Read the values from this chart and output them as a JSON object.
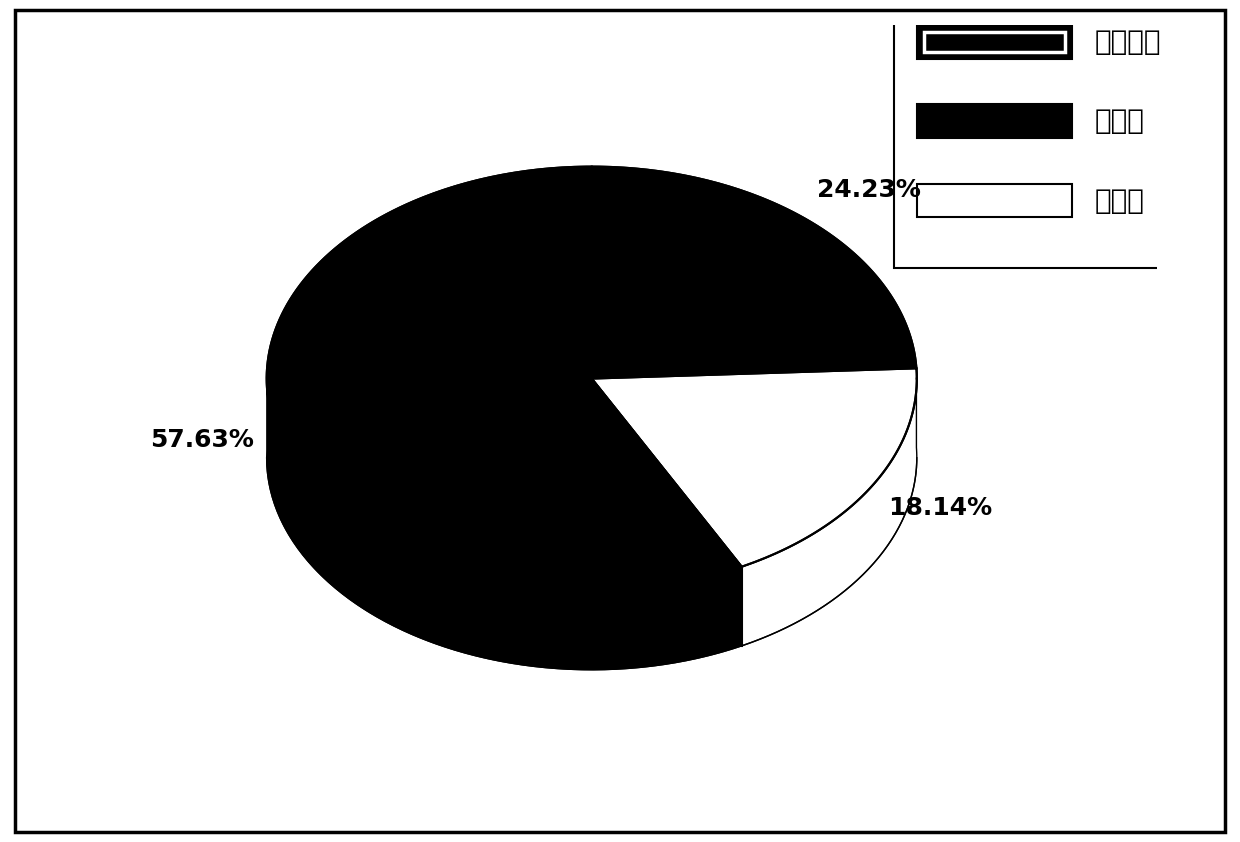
{
  "slices": [
    {
      "label": "细胞溶质",
      "value": 24.23,
      "color": "#000000"
    },
    {
      "label": "细胞器",
      "value": 57.63,
      "color": "#000000"
    },
    {
      "label": "细胞壁",
      "value": 18.14,
      "color": "#ffffff"
    }
  ],
  "pct_labels": [
    "24.23%",
    "57.63%",
    "18.14%"
  ],
  "legend_labels": [
    "细胞溶质",
    "细胞器",
    "细胞壁"
  ],
  "background_color": "#ffffff",
  "font_size_pct": 18,
  "font_size_legend": 20,
  "border_color": "#000000",
  "startangle": 90
}
